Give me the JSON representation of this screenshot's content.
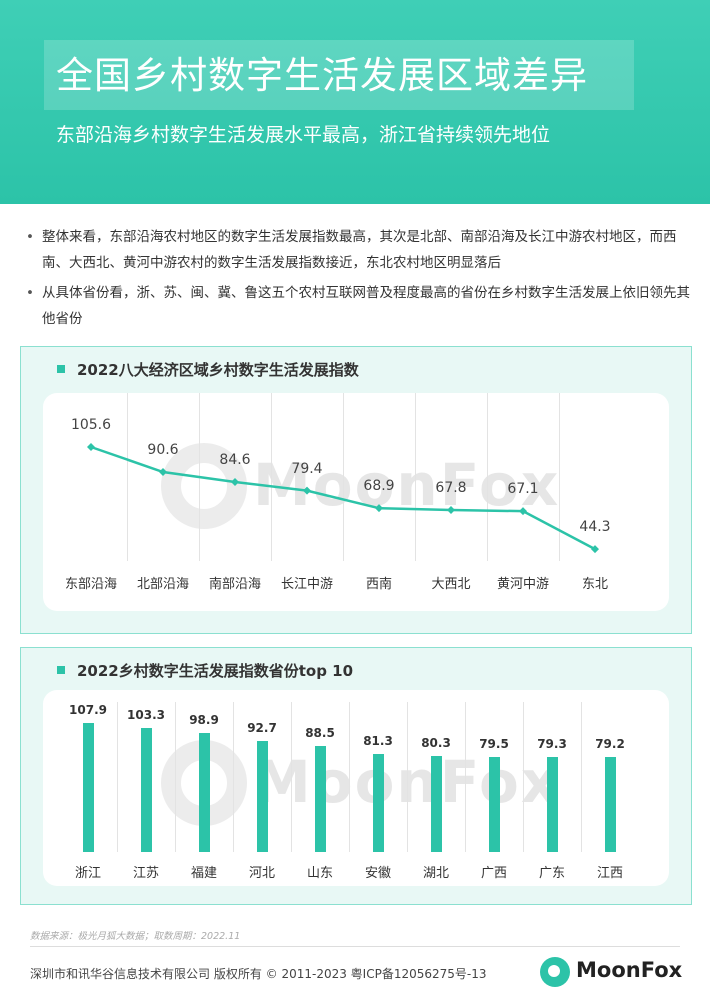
{
  "header": {
    "title": "全国乡村数字生活发展区域差异",
    "subtitle": "东部沿海乡村数字生活发展水平最高，浙江省持续领先地位"
  },
  "bullets": [
    "整体来看，东部沿海农村地区的数字生活发展指数最高，其次是北部、南部沿海及长江中游农村地区，而西南、大西北、黄河中游农村的数字生活发展指数接近，东北农村地区明显落后",
    "从具体省份看，浙、苏、闽、冀、鲁这五个农村互联网普及程度最高的省份在乡村数字生活发展上依旧领先其他省份"
  ],
  "watermark": "MoonFox",
  "chart_data": [
    {
      "type": "line",
      "title": "2022八大经济区域乡村数字生活发展指数",
      "categories": [
        "东部沿海",
        "北部沿海",
        "南部沿海",
        "长江中游",
        "西南",
        "大西北",
        "黄河中游",
        "东北"
      ],
      "values": [
        105.6,
        90.6,
        84.6,
        79.4,
        68.9,
        67.8,
        67.1,
        44.3
      ],
      "color": "#2cc3a8"
    },
    {
      "type": "bar",
      "title": "2022乡村数字生活发展指数省份top 10",
      "categories": [
        "浙江",
        "江苏",
        "福建",
        "河北",
        "山东",
        "安徽",
        "湖北",
        "广西",
        "广东",
        "江西"
      ],
      "values": [
        107.9,
        103.3,
        98.9,
        92.7,
        88.5,
        81.3,
        80.3,
        79.5,
        79.3,
        79.2
      ],
      "color": "#2cc3a8"
    }
  ],
  "footer": {
    "source": "数据来源：极光月狐大数据；取数周期：2022.11",
    "copyright": "深圳市和讯华谷信息技术有限公司 版权所有 © 2011-2023 粤ICP备12056275号-13",
    "logo_text": "MoonFox"
  }
}
